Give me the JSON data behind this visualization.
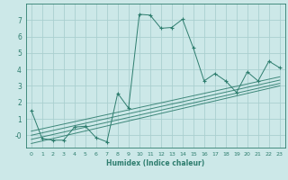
{
  "xlabel": "Humidex (Indice chaleur)",
  "bg_color": "#cce8e8",
  "line_color": "#2e7d6e",
  "grid_color": "#aacfcf",
  "xlim": [
    -0.5,
    23.5
  ],
  "ylim": [
    -0.75,
    8.0
  ],
  "xticks": [
    0,
    1,
    2,
    3,
    4,
    5,
    6,
    7,
    8,
    9,
    10,
    11,
    12,
    13,
    14,
    15,
    16,
    17,
    18,
    19,
    20,
    21,
    22,
    23
  ],
  "yticks": [
    0,
    1,
    2,
    3,
    4,
    5,
    6,
    7
  ],
  "ytick_labels": [
    "-0",
    "1",
    "2",
    "3",
    "4",
    "5",
    "6",
    "7"
  ],
  "main_series_x": [
    0,
    1,
    2,
    3,
    4,
    5,
    6,
    7,
    8,
    9,
    10,
    11,
    12,
    13,
    14,
    15,
    16,
    17,
    18,
    19,
    20,
    21,
    22,
    23
  ],
  "main_series_y": [
    1.5,
    -0.2,
    -0.3,
    -0.3,
    0.5,
    0.55,
    -0.15,
    -0.4,
    2.55,
    1.65,
    7.35,
    7.3,
    6.5,
    6.55,
    7.05,
    5.3,
    3.3,
    3.75,
    3.3,
    2.6,
    3.85,
    3.3,
    4.5,
    4.1
  ],
  "regression_lines": [
    {
      "x": [
        0,
        23
      ],
      "y": [
        -0.5,
        3.0
      ]
    },
    {
      "x": [
        0,
        23
      ],
      "y": [
        -0.25,
        3.15
      ]
    },
    {
      "x": [
        0,
        23
      ],
      "y": [
        0.0,
        3.35
      ]
    },
    {
      "x": [
        0,
        23
      ],
      "y": [
        0.25,
        3.55
      ]
    }
  ]
}
